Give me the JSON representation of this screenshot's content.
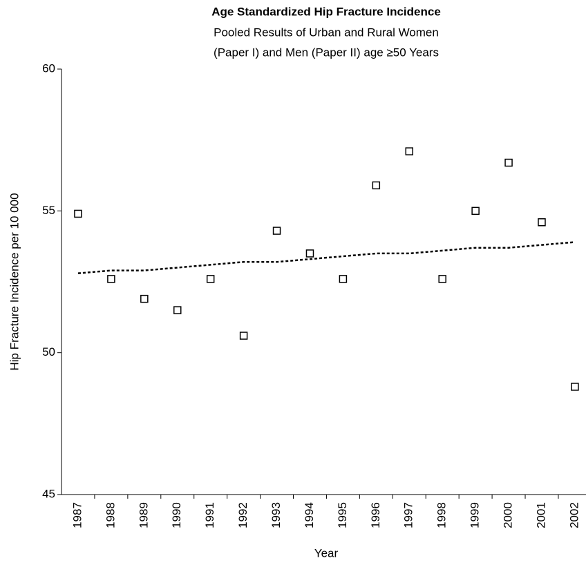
{
  "chart_data": {
    "type": "scatter",
    "title": "Age Standardized Hip Fracture Incidence",
    "subtitle": [
      "Pooled Results of Urban and Rural Women",
      "(Paper I) and Men (Paper II) age ≥50 Years"
    ],
    "x_label": "Year",
    "y_label": "Hip Fracture Incidence per 10 000",
    "categories": [
      "1987",
      "1988",
      "1989",
      "1990",
      "1991",
      "1992",
      "1993",
      "1994",
      "1995",
      "1996",
      "1997",
      "1998",
      "1999",
      "2000",
      "2001",
      "2002"
    ],
    "series": [
      {
        "marker": "square",
        "color": "#000000",
        "values": [
          54.9,
          52.6,
          51.9,
          51.5,
          52.6,
          50.6,
          54.3,
          53.5,
          52.6,
          55.9,
          57.1,
          52.6,
          55.0,
          56.7,
          54.6,
          48.8
        ]
      },
      {
        "marker": "dashed-line",
        "color": "#000000",
        "values": [
          52.8,
          52.9,
          52.9,
          53.0,
          53.1,
          53.2,
          53.2,
          53.3,
          53.4,
          53.5,
          53.5,
          53.6,
          53.7,
          53.7,
          53.8,
          53.9
        ]
      }
    ],
    "ylim": [
      45,
      60
    ],
    "yticks": [
      45,
      50,
      55,
      60
    ],
    "grid": false
  }
}
